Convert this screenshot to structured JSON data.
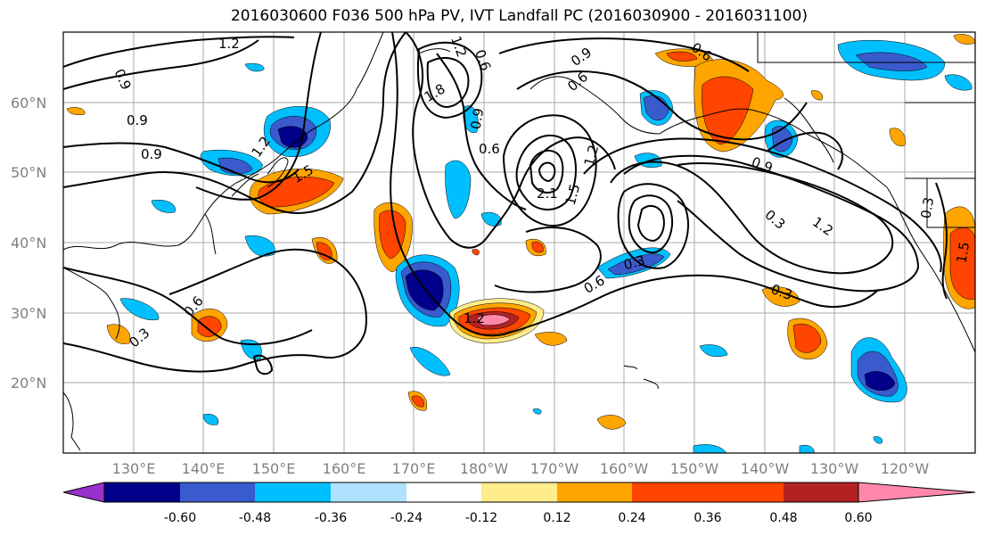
{
  "title": "2016030600 F036 500 hPa PV, IVT Landfall PC (2016030900 - 2016031100)",
  "map": {
    "lat_labels": [
      "60°N",
      "50°N",
      "40°N",
      "30°N",
      "20°N"
    ],
    "lon_labels": [
      "130°E",
      "140°E",
      "150°E",
      "160°E",
      "170°E",
      "180°W",
      "170°W",
      "160°W",
      "150°W",
      "140°W",
      "130°W",
      "120°W"
    ],
    "lon_range": [
      120,
      250
    ],
    "lat_range": [
      10,
      70
    ]
  },
  "contour_labels": [
    {
      "text": "1.2"
    },
    {
      "text": "0.9"
    },
    {
      "text": "0.9"
    },
    {
      "text": "0.9"
    },
    {
      "text": "1.2"
    },
    {
      "text": "1.5"
    },
    {
      "text": "1.8"
    },
    {
      "text": "1.2"
    },
    {
      "text": "0.6"
    },
    {
      "text": "0.9"
    },
    {
      "text": "0.6"
    },
    {
      "text": "2.1"
    },
    {
      "text": "1.5"
    },
    {
      "text": "1.2"
    },
    {
      "text": "0.6"
    },
    {
      "text": "0.9"
    },
    {
      "text": "0.9"
    },
    {
      "text": "0.3"
    },
    {
      "text": "1.2"
    },
    {
      "text": "0.3"
    },
    {
      "text": "0.6"
    },
    {
      "text": "0.3"
    },
    {
      "text": "1.2"
    },
    {
      "text": "0.6"
    },
    {
      "text": "0.3"
    },
    {
      "text": "0.6"
    },
    {
      "text": "1.5"
    },
    {
      "text": "0.3"
    }
  ],
  "colorbar": {
    "colors": [
      "#9932cc",
      "#00008b",
      "#3a5bcd",
      "#00bfff",
      "#b0e2ff",
      "#ffffff",
      "#ffec8b",
      "#ffa500",
      "#ff4500",
      "#b22222",
      "#ff88aa"
    ],
    "ticks": [
      "-0.60",
      "-0.48",
      "-0.36",
      "-0.24",
      "-0.12",
      "0.12",
      "0.24",
      "0.36",
      "0.48",
      "0.60"
    ]
  }
}
